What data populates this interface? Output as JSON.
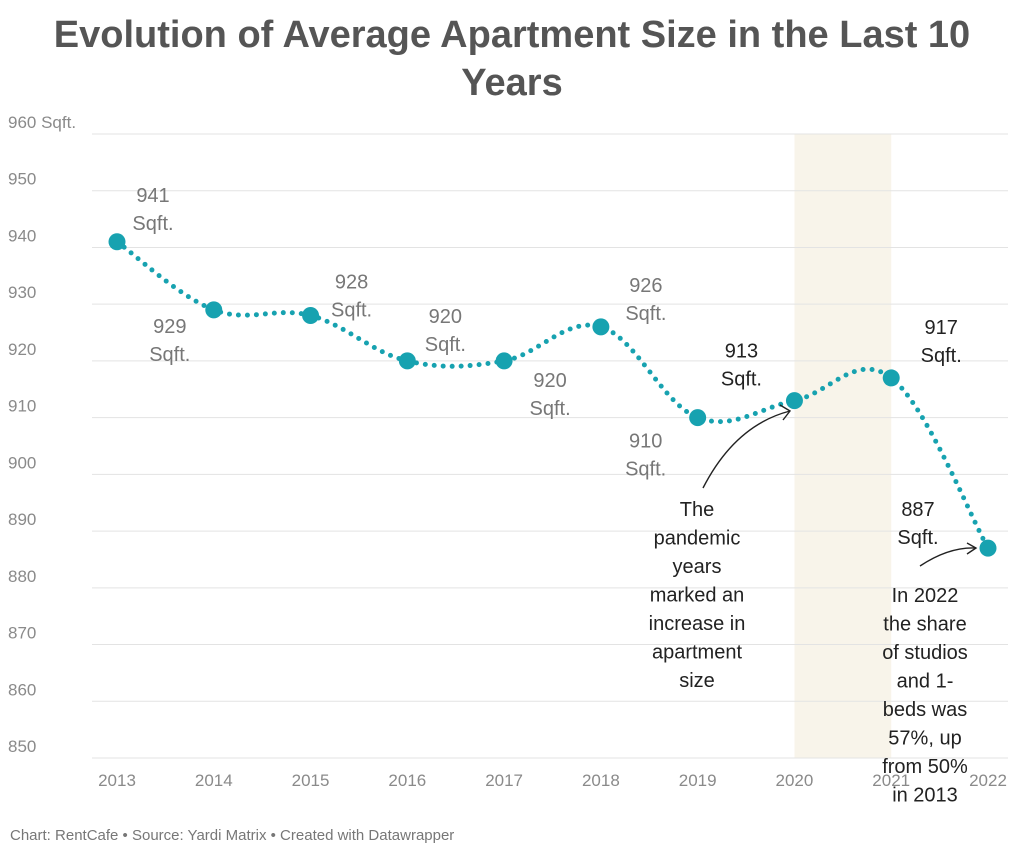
{
  "chart_data": {
    "type": "line",
    "title": "Evolution of Average Apartment Size in the Last 10 Years",
    "title_lines": [
      "Evolution of Average Apartment Size in the Last 10",
      "Years"
    ],
    "x": [
      "2013",
      "2014",
      "2015",
      "2016",
      "2017",
      "2018",
      "2019",
      "2020",
      "2021",
      "2022"
    ],
    "values": [
      941,
      929,
      928,
      920,
      920,
      926,
      910,
      913,
      917,
      887
    ],
    "data_labels": [
      [
        "941",
        "Sqft."
      ],
      [
        "929",
        "Sqft."
      ],
      [
        "928",
        "Sqft."
      ],
      [
        "920",
        "Sqft."
      ],
      [
        "920",
        "Sqft."
      ],
      [
        "926",
        "Sqft."
      ],
      [
        "910",
        "Sqft."
      ],
      [
        "913",
        "Sqft."
      ],
      [
        "917",
        "Sqft."
      ],
      [
        "887",
        "Sqft."
      ]
    ],
    "ylim": [
      850,
      960
    ],
    "yticks": [
      "850",
      "860",
      "870",
      "880",
      "890",
      "900",
      "910",
      "920",
      "930",
      "940",
      "950",
      "960 Sqft."
    ],
    "grid": true,
    "line_style": "dotted",
    "highlight_range": [
      "2020",
      "2021"
    ],
    "annotations": [
      {
        "lines": [
          "The",
          "pandemic",
          "years",
          "marked an",
          "increase in",
          "apartment",
          "size"
        ]
      },
      {
        "lines": [
          "In 2022",
          "the share",
          "of studios",
          "and 1-",
          "beds was",
          "57%, up",
          "from 50%",
          "in 2013"
        ]
      }
    ],
    "colors": {
      "line": "#17a2b0",
      "highlight": "#f8f4ea",
      "grid": "#e3e3e3",
      "muted_label": "#777777",
      "dark_label": "#222222"
    }
  },
  "footer": "Chart: RentCafe • Source: Yardi Matrix • Created with Datawrapper"
}
